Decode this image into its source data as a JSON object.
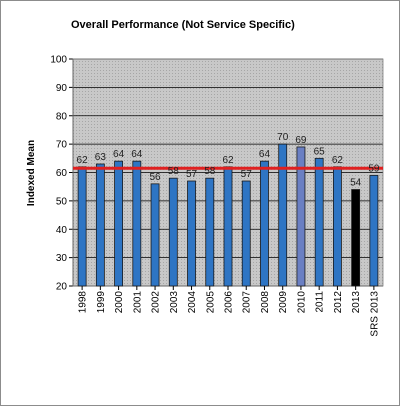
{
  "colors": {
    "bar": "#2e75c4",
    "bar_2010": "#6a7fc3",
    "bar_2013": "#000000",
    "bar_edge": "#1a1a1a",
    "plot_bg": "#c8c8c8",
    "grid": "#000000",
    "average_line": "#e02020"
  },
  "chart_data": {
    "type": "bar",
    "title": "Overall Performance (Not Service Specific)",
    "xlabel": "",
    "ylabel": "Indexed Mean",
    "ylim": [
      20,
      100
    ],
    "yticks": [
      20,
      30,
      40,
      50,
      60,
      70,
      80,
      90,
      100
    ],
    "grid": true,
    "categories": [
      "1998",
      "1999",
      "2000",
      "2001",
      "2002",
      "2003",
      "2004",
      "2005",
      "2006",
      "2007",
      "2008",
      "2009",
      "2010",
      "2011",
      "2012",
      "2013",
      "SRS 2013"
    ],
    "values": [
      62,
      63,
      64,
      64,
      56,
      58,
      57,
      58,
      62,
      57,
      64,
      70,
      69,
      65,
      62,
      54,
      59
    ],
    "data_labels": [
      "62",
      "63",
      "64",
      "64",
      "56",
      "58",
      "57",
      "58",
      "62",
      "57",
      "64",
      "70",
      "69",
      "65",
      "62",
      "54",
      "59"
    ],
    "reference_line": {
      "value": 61.5,
      "color": "#e02020"
    }
  }
}
